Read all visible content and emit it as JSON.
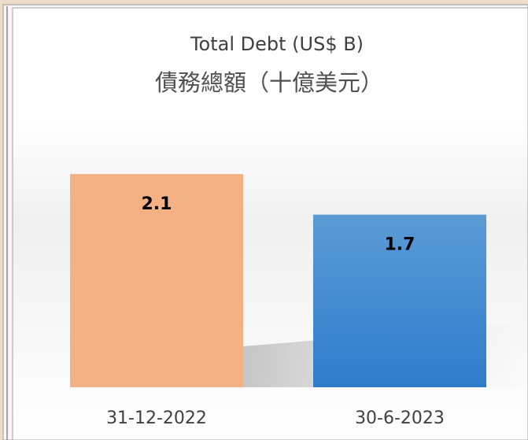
{
  "chart_data": {
    "type": "bar",
    "title": "Total Debt (US$ B)",
    "subtitle": "債務總額（十億美元）",
    "categories": [
      "31-12-2022",
      "30-6-2023"
    ],
    "values": [
      2.1,
      1.7
    ],
    "colors": [
      "#f4b183",
      "#4a8fd3"
    ],
    "ylim": [
      0,
      2.5
    ]
  }
}
